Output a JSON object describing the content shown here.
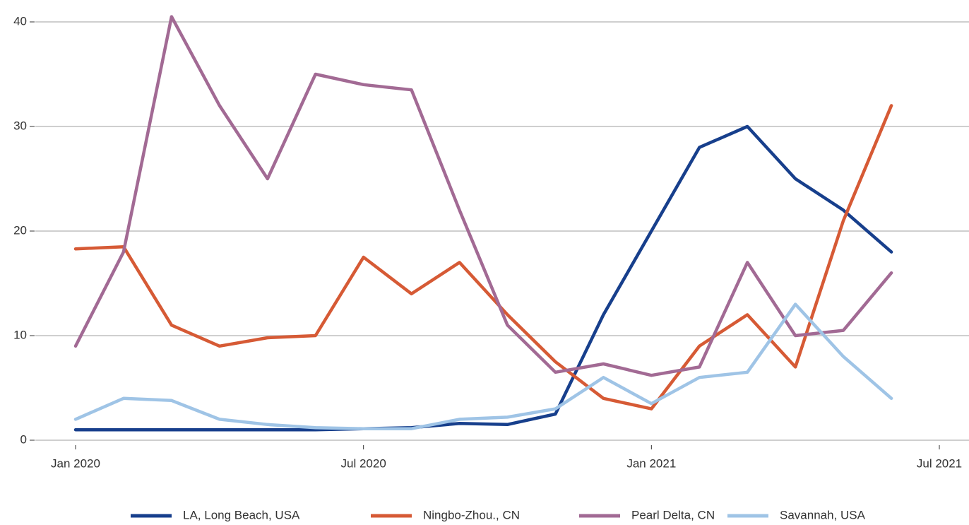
{
  "chart_data": {
    "type": "line",
    "x": [
      "2020-01",
      "2020-02",
      "2020-03",
      "2020-04",
      "2020-05",
      "2020-06",
      "2020-07",
      "2020-08",
      "2020-09",
      "2020-10",
      "2020-11",
      "2020-12",
      "2021-01",
      "2021-02",
      "2021-03",
      "2021-04",
      "2021-05",
      "2021-06"
    ],
    "series": [
      {
        "name": "LA, Long Beach, USA",
        "color": "#173f8c",
        "values": [
          1,
          1,
          1,
          1,
          1,
          1,
          1.1,
          1.2,
          1.6,
          1.5,
          2.5,
          12,
          20,
          28,
          30,
          25,
          22,
          18
        ]
      },
      {
        "name": "Ningbo-Zhou., CN",
        "color": "#d65a35",
        "values": [
          18.3,
          18.5,
          11,
          9,
          9.8,
          10,
          17.5,
          14,
          17,
          12,
          7.5,
          4,
          3,
          9,
          12,
          7,
          21,
          32
        ]
      },
      {
        "name": "Pearl Delta, CN",
        "color": "#a26a94",
        "values": [
          9,
          18,
          40.5,
          32,
          25,
          35,
          34,
          33.5,
          22,
          11,
          6.5,
          7.3,
          6.2,
          7,
          17,
          10,
          10.5,
          16
        ]
      },
      {
        "name": "Savannah, USA",
        "color": "#9fc4e6",
        "values": [
          2,
          4,
          3.8,
          2,
          1.5,
          1.2,
          1.1,
          1.1,
          2,
          2.2,
          3,
          6,
          3.5,
          6,
          6.5,
          13,
          8,
          4
        ]
      }
    ],
    "xlim": [
      "2020-01",
      "2021-07"
    ],
    "xticks": [
      {
        "value": "2020-01",
        "label": "Jan 2020"
      },
      {
        "value": "2020-07",
        "label": "Jul 2020"
      },
      {
        "value": "2021-01",
        "label": "Jan 2021"
      },
      {
        "value": "2021-07",
        "label": "Jul 2021"
      }
    ],
    "ylim": [
      0,
      40
    ],
    "yticks": [
      0,
      10,
      20,
      30,
      40
    ],
    "grid": true,
    "legend": "bottom"
  }
}
